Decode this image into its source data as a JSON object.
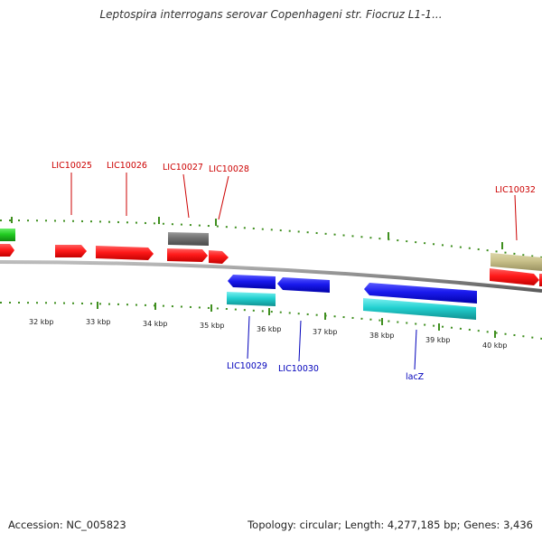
{
  "title": "Leptospira interrogans serovar Copenhageni str. Fiocruz L1-1...",
  "accession": "Accession: NC_005823",
  "stats": "Topology: circular; Length: 4,277,185 bp; Genes: 3,436",
  "colors": {
    "backbone": "#8a8a8a",
    "tick": "#3f8f1f",
    "forward_cds": "#ff1a1a",
    "forward_gene_grey": "#707070",
    "forward_gene_khaki": "#c8c08a",
    "forward_green": "#22cc22",
    "reverse_cds": "#1a1aee",
    "reverse_gene": "#22d0d0",
    "label_forward": "#cc0000",
    "label_reverse": "#0000bb"
  },
  "kbp_labels": [
    "32 kbp",
    "33 kbp",
    "34 kbp",
    "35 kbp",
    "36 kbp",
    "37 kbp",
    "38 kbp",
    "39 kbp",
    "40 kbp"
  ],
  "forward_labels": [
    "LIC10025",
    "LIC10026",
    "LIC10027",
    "LIC10028",
    "LIC10032"
  ],
  "reverse_labels": [
    "LIC10029",
    "LIC10030",
    "lacZ"
  ]
}
